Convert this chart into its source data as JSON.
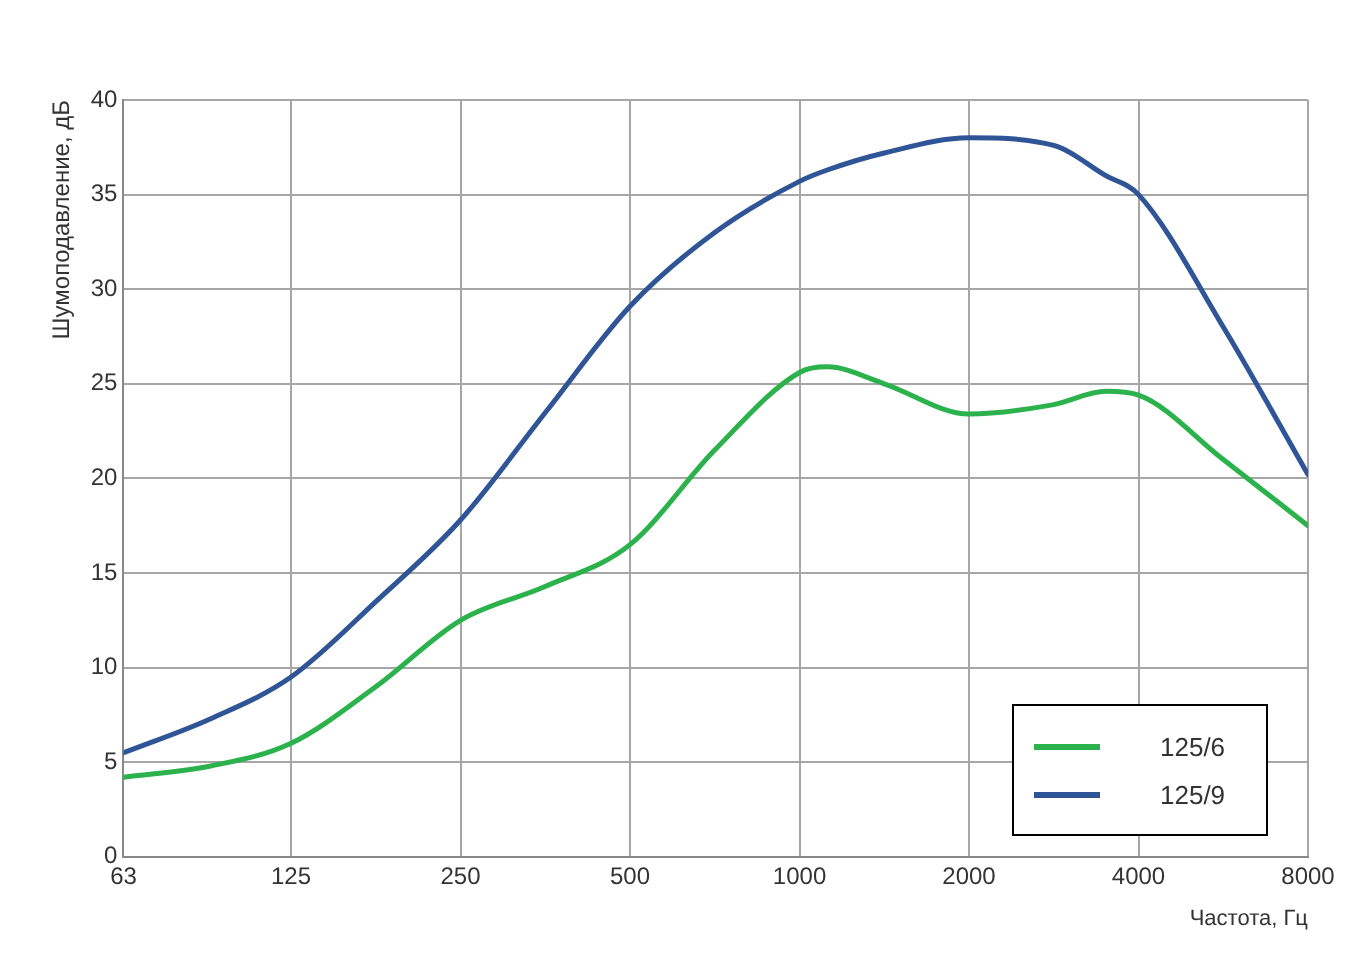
{
  "chart_data": {
    "type": "line",
    "xlabel": "Частота, Гц",
    "ylabel": "Шумоподавление, дБ",
    "log": "x",
    "x": [
      63,
      90,
      125,
      177,
      250,
      354,
      500,
      707,
      1000,
      1120,
      1414,
      2000,
      2828,
      3500,
      4000,
      5657,
      8000
    ],
    "xlim": [
      63,
      8000
    ],
    "xticks": [
      63,
      125,
      250,
      500,
      1000,
      2000,
      4000,
      8000
    ],
    "ylim": [
      0,
      40
    ],
    "yticks": [
      0,
      5,
      10,
      15,
      20,
      25,
      30,
      35,
      40
    ],
    "grid": true,
    "legend": "bottom right",
    "marker": "none",
    "line_style": "solid",
    "series": [
      {
        "name": "125/6",
        "color": "#2bb24c",
        "values": [
          4.2,
          4.8,
          6.0,
          9.0,
          12.5,
          14.3,
          16.5,
          21.5,
          25.6,
          25.9,
          25.0,
          23.4,
          23.9,
          24.6,
          24.4,
          21.0,
          17.5
        ]
      },
      {
        "name": "125/9",
        "color": "#2f5597",
        "values": [
          5.5,
          7.3,
          9.5,
          13.5,
          17.8,
          23.5,
          29.1,
          33.0,
          35.7,
          36.3,
          37.2,
          38.0,
          37.6,
          36.0,
          35.0,
          28.0,
          20.2
        ]
      }
    ]
  }
}
